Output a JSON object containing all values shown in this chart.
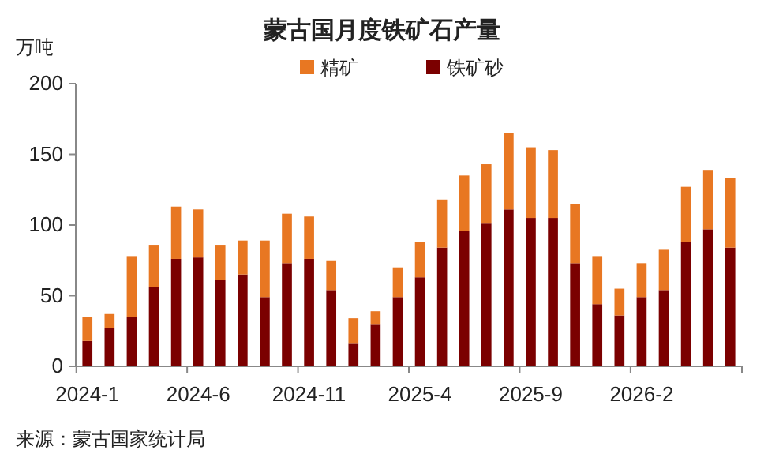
{
  "chart_data": {
    "type": "bar",
    "title": "蒙古国月度铁矿石产量",
    "ylabel": "万吨",
    "stacked": true,
    "legend": "top",
    "categories": [
      "2024-1",
      null,
      null,
      null,
      null,
      "2024-6",
      null,
      null,
      null,
      null,
      "2024-11",
      null,
      null,
      null,
      null,
      "2025-4",
      null,
      null,
      null,
      null,
      "2025-9",
      null,
      null,
      null,
      null,
      "2026-2",
      null,
      null,
      null,
      null
    ],
    "series": [
      {
        "name": "铁矿砂",
        "color": "#7b0000",
        "values": [
          18,
          27,
          35,
          56,
          76,
          77,
          61,
          65,
          49,
          73,
          76,
          54,
          16,
          30,
          49,
          63,
          84,
          96,
          101,
          111,
          105,
          105,
          73,
          44,
          36,
          49,
          54,
          88,
          97,
          84
        ]
      },
      {
        "name": "精矿",
        "color": "#e87722",
        "values": [
          17,
          10,
          43,
          30,
          37,
          34,
          25,
          24,
          40,
          35,
          30,
          21,
          18,
          9,
          21,
          25,
          34,
          39,
          42,
          54,
          50,
          48,
          42,
          34,
          19,
          24,
          29,
          39,
          42,
          49
        ]
      }
    ],
    "ylim": [
      0,
      200
    ],
    "yticks": [
      0,
      50,
      100,
      150,
      200
    ],
    "grid": false,
    "annotations": [
      "来源：蒙古国家统计局"
    ]
  }
}
